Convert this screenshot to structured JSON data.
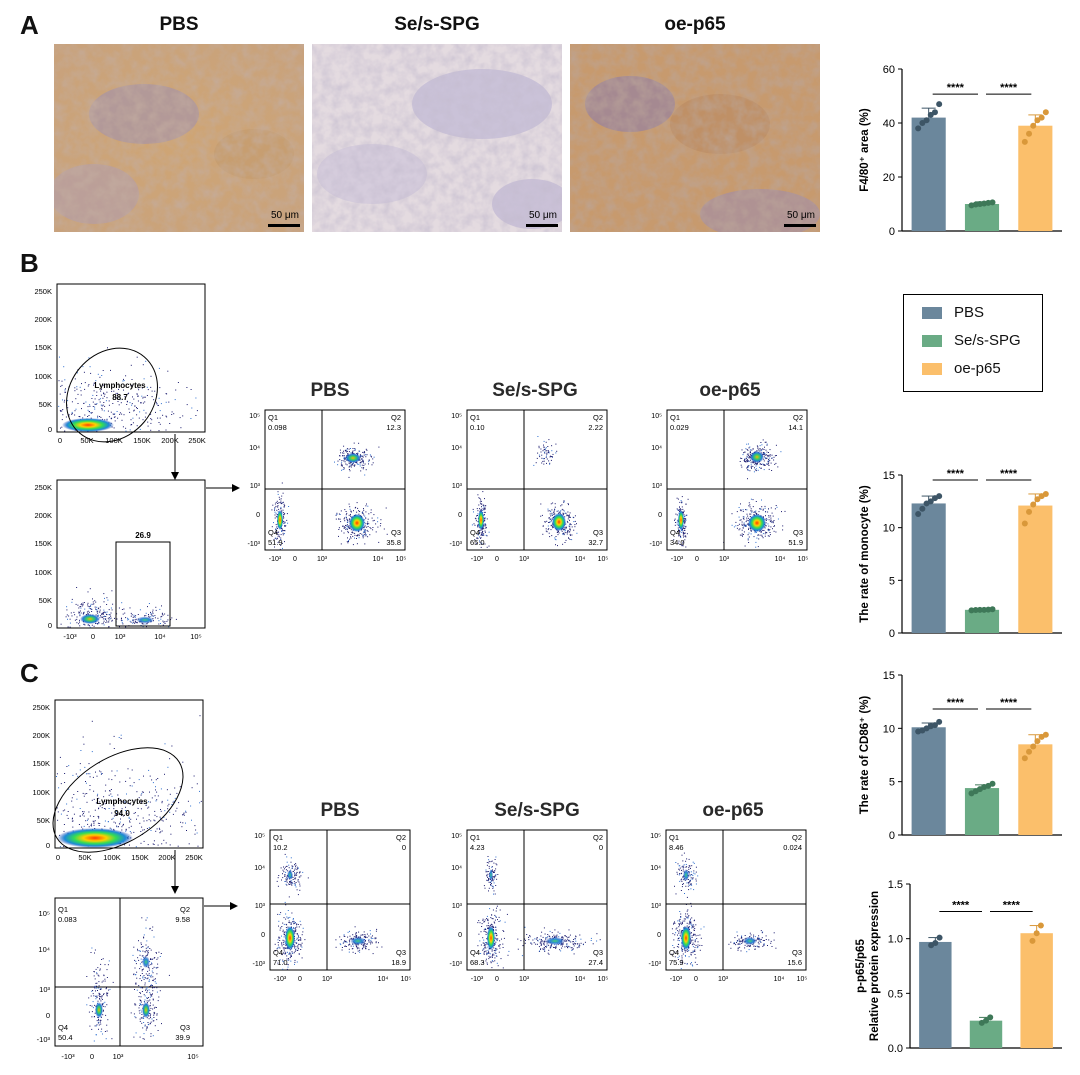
{
  "panels": {
    "a": "A",
    "b": "B",
    "c": "C"
  },
  "groups": [
    "PBS",
    "Se/s-SPG",
    "oe-p65"
  ],
  "colors": {
    "pbs": "#6b879c",
    "se": "#6aab85",
    "oe": "#fbbf6b"
  },
  "ihc": {
    "titles": [
      "PBS",
      "Se/s-SPG",
      "oe-p65"
    ],
    "scale_bar": "50 μm"
  },
  "legend": {
    "items": [
      "PBS",
      "Se/s-SPG",
      "oe-p65"
    ]
  },
  "flow_b": {
    "titles": [
      "PBS",
      "Se/s-SPG",
      "oe-p65"
    ],
    "gate1": {
      "name": "Lymphocytes",
      "value": "88.7",
      "yticks": [
        "250K",
        "200K",
        "150K",
        "100K",
        "50K",
        "0"
      ],
      "xticks": [
        "0",
        "50K",
        "100K",
        "150K",
        "200K",
        "250K"
      ]
    },
    "gate2": {
      "value": "26.9",
      "yticks": [
        "250K",
        "200K",
        "150K",
        "100K",
        "50K",
        "0"
      ],
      "xticks": [
        "-10³",
        "0",
        "10³",
        "10⁴",
        "10⁵"
      ]
    },
    "quads": [
      {
        "q1": "Q1",
        "q1v": "0.098",
        "q2": "Q2",
        "q2v": "12.3",
        "q3": "Q3",
        "q3v": "35.8",
        "q4": "Q4",
        "q4v": "51.9"
      },
      {
        "q1": "Q1",
        "q1v": "0.10",
        "q2": "Q2",
        "q2v": "2.22",
        "q3": "Q3",
        "q3v": "32.7",
        "q4": "Q4",
        "q4v": "65.0"
      },
      {
        "q1": "Q1",
        "q1v": "0.029",
        "q2": "Q2",
        "q2v": "14.1",
        "q3": "Q3",
        "q3v": "51.9",
        "q4": "Q4",
        "q4v": "34.0"
      }
    ],
    "yticks": [
      "10⁵",
      "10⁴",
      "10³",
      "0",
      "-10³"
    ],
    "xticks": [
      "-10³",
      "0",
      "10³",
      "10⁴",
      "10⁵"
    ]
  },
  "flow_c": {
    "titles": [
      "PBS",
      "Se/s-SPG",
      "oe-p65"
    ],
    "gate1": {
      "name": "Lymphocytes",
      "value": "94.0",
      "yticks": [
        "250K",
        "200K",
        "150K",
        "100K",
        "50K",
        "0"
      ],
      "xticks": [
        "0",
        "50K",
        "100K",
        "150K",
        "200K",
        "250K"
      ]
    },
    "gate2": {
      "q1": "Q1",
      "q1v": "0.083",
      "q2": "Q2",
      "q2v": "9.58",
      "q3": "Q3",
      "q3v": "39.9",
      "q4": "Q4",
      "q4v": "50.4",
      "yticks": [
        "10⁵",
        "10⁴",
        "10³",
        "0",
        "-10³"
      ],
      "xticks": [
        "-10³",
        "0",
        "10³",
        "10⁵"
      ]
    },
    "quads": [
      {
        "q1": "Q1",
        "q1v": "10.2",
        "q2": "Q2",
        "q2v": "0",
        "q3": "Q3",
        "q3v": "18.9",
        "q4": "Q4",
        "q4v": "71.0"
      },
      {
        "q1": "Q1",
        "q1v": "4.23",
        "q2": "Q2",
        "q2v": "0",
        "q3": "Q3",
        "q3v": "27.4",
        "q4": "Q4",
        "q4v": "68.3"
      },
      {
        "q1": "Q1",
        "q1v": "8.46",
        "q2": "Q2",
        "q2v": "0.024",
        "q3": "Q3",
        "q3v": "15.6",
        "q4": "Q4",
        "q4v": "75.9"
      }
    ],
    "yticks": [
      "10⁵",
      "10⁴",
      "10³",
      "0",
      "-10³"
    ],
    "xticks": [
      "-10³",
      "0",
      "10³",
      "10⁴",
      "10⁵"
    ]
  },
  "chart_data": [
    {
      "id": "f480",
      "type": "bar",
      "categories": [
        "PBS",
        "Se/s-SPG",
        "oe-p65"
      ],
      "values": [
        42,
        10,
        39
      ],
      "errors": [
        3.5,
        0.8,
        4
      ],
      "points": [
        [
          38,
          40,
          41,
          43,
          44,
          47
        ],
        [
          9.5,
          9.8,
          10,
          10.2,
          10.4,
          10.6
        ],
        [
          33,
          36,
          39,
          41,
          42,
          44
        ]
      ],
      "ylabel": "F4/80⁺ area (%)",
      "ylim": [
        0,
        60
      ],
      "yticks": [
        0,
        20,
        40,
        60
      ],
      "significance": [
        "****",
        "****"
      ]
    },
    {
      "id": "monocyte",
      "type": "bar",
      "categories": [
        "PBS",
        "Se/s-SPG",
        "oe-p65"
      ],
      "values": [
        12.3,
        2.2,
        12.1
      ],
      "errors": [
        0.7,
        0.1,
        1.1
      ],
      "points": [
        [
          11.3,
          11.8,
          12.3,
          12.5,
          12.8,
          13.0
        ],
        [
          2.15,
          2.18,
          2.2,
          2.2,
          2.22,
          2.25
        ],
        [
          10.4,
          11.5,
          12.2,
          12.7,
          13.0,
          13.2
        ]
      ],
      "ylabel": "The rate of monocyte (%)",
      "ylim": [
        0,
        15
      ],
      "yticks": [
        0,
        5,
        10,
        15
      ],
      "significance": [
        "****",
        "****"
      ]
    },
    {
      "id": "cd86",
      "type": "bar",
      "categories": [
        "PBS",
        "Se/s-SPG",
        "oe-p65"
      ],
      "values": [
        10.1,
        4.4,
        8.5
      ],
      "errors": [
        0.4,
        0.3,
        0.9
      ],
      "points": [
        [
          9.7,
          9.8,
          10.0,
          10.2,
          10.3,
          10.6
        ],
        [
          3.9,
          4.1,
          4.3,
          4.5,
          4.6,
          4.8
        ],
        [
          7.2,
          7.8,
          8.3,
          8.8,
          9.2,
          9.4
        ]
      ],
      "ylabel": "The rate of CD86⁺ (%)",
      "ylim": [
        0,
        15
      ],
      "yticks": [
        0,
        5,
        10,
        15
      ],
      "significance": [
        "****",
        "****"
      ]
    },
    {
      "id": "p65",
      "type": "bar",
      "categories": [
        "PBS",
        "Se/s-SPG",
        "oe-p65"
      ],
      "values": [
        0.97,
        0.25,
        1.05
      ],
      "errors": [
        0.04,
        0.03,
        0.07
      ],
      "points": [
        [
          0.94,
          0.96,
          1.01
        ],
        [
          0.23,
          0.25,
          0.28
        ],
        [
          0.98,
          1.05,
          1.12
        ]
      ],
      "ylabel": "p-p65/p65",
      "ylabel2": "Relative protein expression",
      "ylim": [
        0,
        1.5
      ],
      "yticks": [
        0.0,
        0.5,
        1.0,
        1.5
      ],
      "ytick_labels": [
        "0.0",
        "0.5",
        "1.0",
        "1.5"
      ],
      "significance": [
        "****",
        "****"
      ]
    }
  ]
}
